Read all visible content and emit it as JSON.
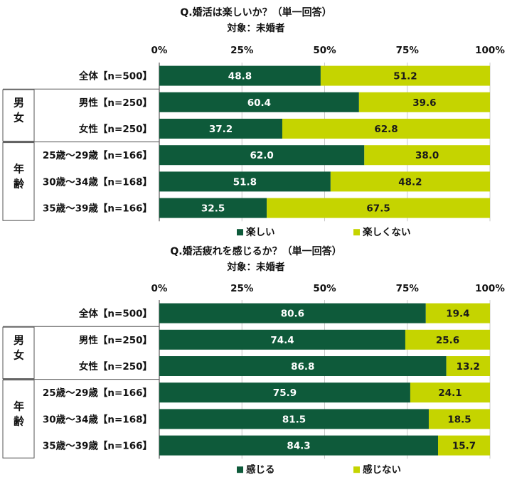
{
  "colors": {
    "series_a": "#0e5a3a",
    "series_b": "#c5d400",
    "text": "#111111",
    "grid": "#c8c8c8",
    "axis": "#555555",
    "bar_label_light": "#ffffff",
    "bar_label_dark": "#1a1a1a"
  },
  "chart_data": [
    {
      "type": "bar",
      "orientation": "horizontal",
      "stacked": true,
      "title": "Q.婚活は楽しいか？（単一回答）",
      "subtitle": "対象：未婚者",
      "xlim": [
        0,
        100
      ],
      "ticks": [
        "0%",
        "25%",
        "50%",
        "75%",
        "100%"
      ],
      "groups": [
        {
          "label": "",
          "rows": [
            0
          ]
        },
        {
          "label": "男女",
          "rows": [
            1,
            2
          ]
        },
        {
          "label": "年齢",
          "rows": [
            3,
            4,
            5
          ]
        }
      ],
      "categories": [
        "全体【n=500】",
        "男性【n=250】",
        "女性【n=250】",
        "25歳～29歳【n=166】",
        "30歳～34歳【n=168】",
        "35歳～39歳【n=166】"
      ],
      "series": [
        {
          "name": "楽しい",
          "values": [
            48.8,
            60.4,
            37.2,
            62.0,
            51.8,
            32.5
          ],
          "labels": [
            "48.8",
            "60.4",
            "37.2",
            "62.0",
            "51.8",
            "32.5"
          ]
        },
        {
          "name": "楽しくない",
          "values": [
            51.2,
            39.6,
            62.8,
            38.0,
            48.2,
            67.5
          ],
          "labels": [
            "51.2",
            "39.6",
            "62.8",
            "38.0",
            "48.2",
            "67.5"
          ]
        }
      ],
      "legend_position": "bottom"
    },
    {
      "type": "bar",
      "orientation": "horizontal",
      "stacked": true,
      "title": "Q.婚活疲れを感じるか？（単一回答）",
      "subtitle": "対象：未婚者",
      "xlim": [
        0,
        100
      ],
      "ticks": [
        "0%",
        "25%",
        "50%",
        "75%",
        "100%"
      ],
      "groups": [
        {
          "label": "",
          "rows": [
            0
          ]
        },
        {
          "label": "男女",
          "rows": [
            1,
            2
          ]
        },
        {
          "label": "年齢",
          "rows": [
            3,
            4,
            5
          ]
        }
      ],
      "categories": [
        "全体【n=500】",
        "男性【n=250】",
        "女性【n=250】",
        "25歳～29歳【n=166】",
        "30歳～34歳【n=168】",
        "35歳～39歳【n=166】"
      ],
      "series": [
        {
          "name": "感じる",
          "values": [
            80.6,
            74.4,
            86.8,
            75.9,
            81.5,
            84.3
          ],
          "labels": [
            "80.6",
            "74.4",
            "86.8",
            "75.9",
            "81.5",
            "84.3"
          ]
        },
        {
          "name": "感じない",
          "values": [
            19.4,
            25.6,
            13.2,
            24.1,
            18.5,
            15.7
          ],
          "labels": [
            "19.4",
            "25.6",
            "13.2",
            "24.1",
            "18.5",
            "15.7"
          ]
        }
      ],
      "legend_position": "bottom"
    }
  ]
}
